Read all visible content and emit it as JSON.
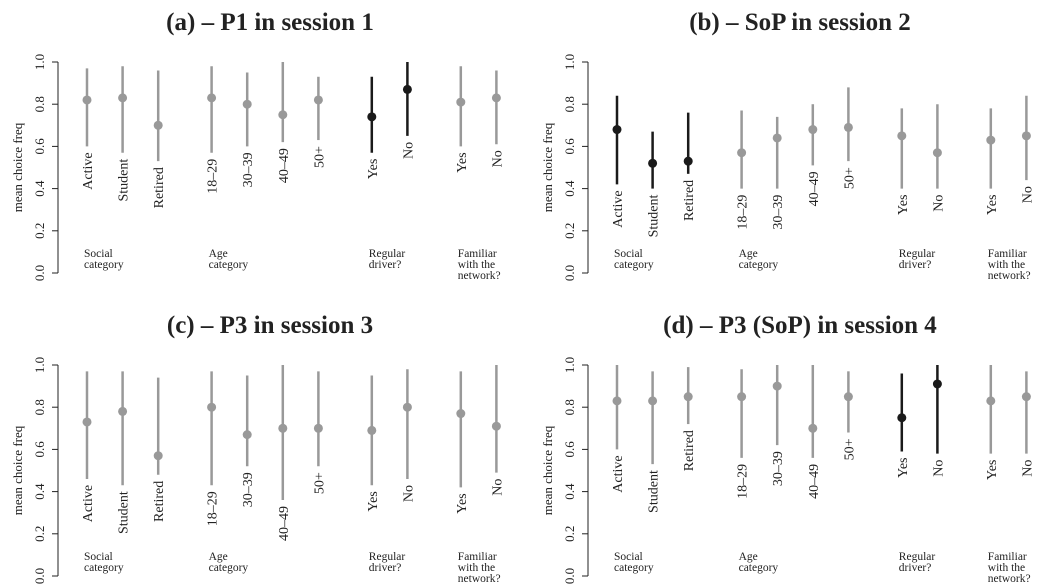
{
  "chart_data": [
    {
      "type": "interval",
      "title": "(a) – P1 in session 1",
      "y_label": "mean choice freq",
      "ylim": [
        0,
        1
      ],
      "yticks": [
        {
          "value": 0,
          "label": "0.0"
        },
        {
          "value": 0.2,
          "label": "0.2"
        },
        {
          "value": 0.4,
          "label": "0.4"
        },
        {
          "value": 0.6,
          "label": "0.6"
        },
        {
          "value": 0.8,
          "label": "0.8"
        },
        {
          "value": 1,
          "label": "1.0"
        }
      ],
      "groups": [
        {
          "label": [
            "Social",
            "category"
          ],
          "color": "#999999",
          "categories": [
            "Active",
            "Student",
            "Retired"
          ],
          "values": [
            0.82,
            0.83,
            0.7
          ],
          "lower": [
            0.6,
            0.57,
            0.53
          ],
          "upper": [
            0.97,
            0.98,
            0.96
          ]
        },
        {
          "label": [
            "Age",
            "category"
          ],
          "color": "#999999",
          "categories": [
            "18–29",
            "30–39",
            "40–49",
            "50+"
          ],
          "values": [
            0.83,
            0.8,
            0.75,
            0.82
          ],
          "lower": [
            0.57,
            0.6,
            0.62,
            0.63
          ],
          "upper": [
            0.98,
            0.95,
            1.0,
            0.93
          ]
        },
        {
          "label": [
            "Regular",
            "driver?"
          ],
          "color": "#1a1a1a",
          "categories": [
            "Yes",
            "No"
          ],
          "values": [
            0.74,
            0.87
          ],
          "lower": [
            0.57,
            0.65
          ],
          "upper": [
            0.93,
            1.0
          ]
        },
        {
          "label": [
            "Familiar",
            "with the",
            "network?"
          ],
          "color": "#999999",
          "categories": [
            "Yes",
            "No"
          ],
          "values": [
            0.81,
            0.83
          ],
          "lower": [
            0.6,
            0.61
          ],
          "upper": [
            0.98,
            0.96
          ]
        }
      ]
    },
    {
      "type": "interval",
      "title": "(b) – SoP in session 2",
      "y_label": "mean choice freq",
      "ylim": [
        0,
        1
      ],
      "yticks": [
        {
          "value": 0,
          "label": "0.0"
        },
        {
          "value": 0.2,
          "label": "0.2"
        },
        {
          "value": 0.4,
          "label": "0.4"
        },
        {
          "value": 0.6,
          "label": "0.6"
        },
        {
          "value": 0.8,
          "label": "0.8"
        },
        {
          "value": 1,
          "label": "1.0"
        }
      ],
      "groups": [
        {
          "label": [
            "Social",
            "category"
          ],
          "color": "#1a1a1a",
          "categories": [
            "Active",
            "Student",
            "Retired"
          ],
          "values": [
            0.68,
            0.52,
            0.53
          ],
          "lower": [
            0.42,
            0.4,
            0.47
          ],
          "upper": [
            0.84,
            0.67,
            0.76
          ]
        },
        {
          "label": [
            "Age",
            "category"
          ],
          "color": "#999999",
          "categories": [
            "18–29",
            "30–39",
            "40–49",
            "50+"
          ],
          "values": [
            0.57,
            0.64,
            0.68,
            0.69
          ],
          "lower": [
            0.4,
            0.4,
            0.51,
            0.53
          ],
          "upper": [
            0.77,
            0.74,
            0.8,
            0.88
          ]
        },
        {
          "label": [
            "Regular",
            "driver?"
          ],
          "color": "#999999",
          "categories": [
            "Yes",
            "No"
          ],
          "values": [
            0.65,
            0.57
          ],
          "lower": [
            0.4,
            0.4
          ],
          "upper": [
            0.78,
            0.8
          ]
        },
        {
          "label": [
            "Familiar",
            "with the",
            "network?"
          ],
          "color": "#999999",
          "categories": [
            "Yes",
            "No"
          ],
          "values": [
            0.63,
            0.65
          ],
          "lower": [
            0.4,
            0.44
          ],
          "upper": [
            0.78,
            0.84
          ]
        }
      ]
    },
    {
      "type": "interval",
      "title": "(c) – P3 in session 3",
      "y_label": "mean choice freq",
      "ylim": [
        0,
        1
      ],
      "yticks": [
        {
          "value": 0,
          "label": "0.0"
        },
        {
          "value": 0.2,
          "label": "0.2"
        },
        {
          "value": 0.4,
          "label": "0.4"
        },
        {
          "value": 0.6,
          "label": "0.6"
        },
        {
          "value": 0.8,
          "label": "0.8"
        },
        {
          "value": 1,
          "label": "1.0"
        }
      ],
      "groups": [
        {
          "label": [
            "Social",
            "category"
          ],
          "color": "#999999",
          "categories": [
            "Active",
            "Student",
            "Retired"
          ],
          "values": [
            0.73,
            0.78,
            0.57
          ],
          "lower": [
            0.46,
            0.43,
            0.48
          ],
          "upper": [
            0.97,
            0.97,
            0.94
          ]
        },
        {
          "label": [
            "Age",
            "category"
          ],
          "color": "#999999",
          "categories": [
            "18–29",
            "30–39",
            "40–49",
            "50+"
          ],
          "values": [
            0.8,
            0.67,
            0.7,
            0.7
          ],
          "lower": [
            0.43,
            0.52,
            0.36,
            0.52
          ],
          "upper": [
            0.97,
            0.95,
            1.0,
            0.97
          ]
        },
        {
          "label": [
            "Regular",
            "driver?"
          ],
          "color": "#999999",
          "categories": [
            "Yes",
            "No"
          ],
          "values": [
            0.69,
            0.8
          ],
          "lower": [
            0.43,
            0.46
          ],
          "upper": [
            0.95,
            0.98
          ]
        },
        {
          "label": [
            "Familiar",
            "with the",
            "network?"
          ],
          "color": "#999999",
          "categories": [
            "Yes",
            "No"
          ],
          "values": [
            0.77,
            0.71
          ],
          "lower": [
            0.42,
            0.49
          ],
          "upper": [
            0.97,
            1.0
          ]
        }
      ]
    },
    {
      "type": "interval",
      "title": "(d) – P3 (SoP) in session 4",
      "y_label": "mean choice freq",
      "ylim": [
        0,
        1
      ],
      "yticks": [
        {
          "value": 0,
          "label": "0.0"
        },
        {
          "value": 0.2,
          "label": "0.2"
        },
        {
          "value": 0.4,
          "label": "0.4"
        },
        {
          "value": 0.6,
          "label": "0.6"
        },
        {
          "value": 0.8,
          "label": "0.8"
        },
        {
          "value": 1,
          "label": "1.0"
        }
      ],
      "groups": [
        {
          "label": [
            "Social",
            "category"
          ],
          "color": "#999999",
          "categories": [
            "Active",
            "Student",
            "Retired"
          ],
          "values": [
            0.83,
            0.83,
            0.85
          ],
          "lower": [
            0.6,
            0.53,
            0.72
          ],
          "upper": [
            1.0,
            0.97,
            0.99
          ]
        },
        {
          "label": [
            "Age",
            "category"
          ],
          "color": "#999999",
          "categories": [
            "18–29",
            "30–39",
            "40–49",
            "50+"
          ],
          "values": [
            0.85,
            0.9,
            0.7,
            0.85
          ],
          "lower": [
            0.56,
            0.62,
            0.56,
            0.68
          ],
          "upper": [
            0.98,
            1.0,
            1.0,
            0.97
          ]
        },
        {
          "label": [
            "Regular",
            "driver?"
          ],
          "color": "#1a1a1a",
          "categories": [
            "Yes",
            "No"
          ],
          "values": [
            0.75,
            0.91
          ],
          "lower": [
            0.59,
            0.58
          ],
          "upper": [
            0.96,
            1.0
          ]
        },
        {
          "label": [
            "Familiar",
            "with the",
            "network?"
          ],
          "color": "#999999",
          "categories": [
            "Yes",
            "No"
          ],
          "values": [
            0.83,
            0.85
          ],
          "lower": [
            0.58,
            0.58
          ],
          "upper": [
            1.0,
            0.97
          ]
        }
      ]
    }
  ]
}
